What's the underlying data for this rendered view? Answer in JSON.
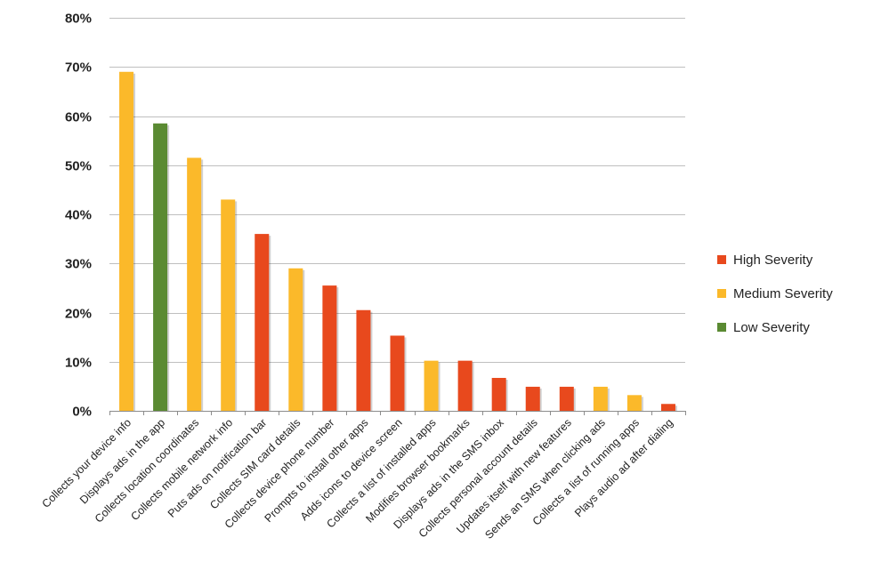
{
  "chart_data": {
    "type": "bar",
    "categories": [
      "Collects your device info",
      "Displays ads in the app",
      "Collects location coordinates",
      "Collects mobile network info",
      "Puts ads on notification bar",
      "Collects SIM card details",
      "Collects device phone number",
      "Prompts to install other apps",
      "Adds icons to device screen",
      "Collects a list of installed apps",
      "Modifies browser bookmarks",
      "Displays ads in the SMS inbox",
      "Collects personal account details",
      "Updates itself with new features",
      "Sends an SMS when clicking ads",
      "Collects a list of running apps",
      "Plays audio ad after dialing"
    ],
    "values": [
      69,
      58.5,
      51.5,
      43,
      36,
      29,
      25.5,
      20.5,
      15.3,
      10.2,
      10.2,
      6.7,
      4.9,
      4.9,
      4.9,
      3.2,
      1.4
    ],
    "severity": [
      "Medium Severity",
      "Low Severity",
      "Medium Severity",
      "Medium Severity",
      "High Severity",
      "Medium Severity",
      "High Severity",
      "High Severity",
      "High Severity",
      "Medium Severity",
      "High Severity",
      "High Severity",
      "High Severity",
      "High Severity",
      "Medium Severity",
      "Medium Severity",
      "High Severity"
    ],
    "ylim": [
      0,
      80
    ],
    "yticks": [
      0,
      10,
      20,
      30,
      40,
      50,
      60,
      70,
      80
    ],
    "ytick_labels": [
      "0%",
      "10%",
      "20%",
      "30%",
      "40%",
      "50%",
      "60%",
      "70%",
      "80%"
    ],
    "grid": true,
    "legend": {
      "placement": "right",
      "entries": [
        {
          "name": "High Severity",
          "color": "#e8491d"
        },
        {
          "name": "Medium Severity",
          "color": "#fbb92a"
        },
        {
          "name": "Low Severity",
          "color": "#5a8a32"
        }
      ]
    }
  }
}
